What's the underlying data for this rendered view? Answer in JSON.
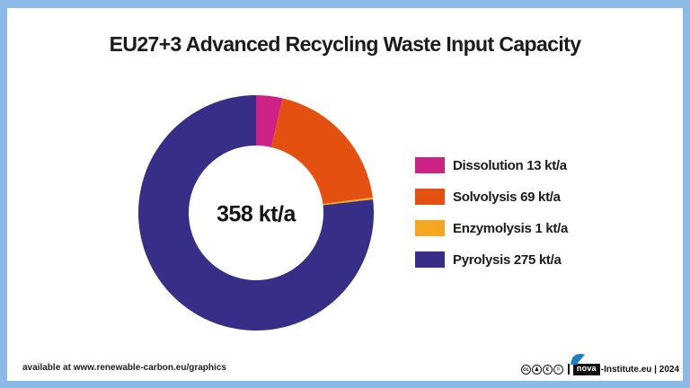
{
  "frame_color": "#8ABAE5",
  "title": "EU27+3 Advanced Recycling Waste Input Capacity",
  "chart_data": {
    "type": "pie",
    "subtype": "donut",
    "title": "EU27+3 Advanced Recycling Waste Input Capacity",
    "center_label": "358 kt/a",
    "total_value": 358,
    "unit": "kt/a",
    "start_angle_deg": 0,
    "direction": "clockwise",
    "inner_radius_ratio": 0.5725,
    "legend_position": "right",
    "segments": [
      {
        "label": "Dissolution",
        "value": 13,
        "color": "#CF2287",
        "legend_text": "Dissolution 13 kt/a"
      },
      {
        "label": "Solvolysis",
        "value": 69,
        "color": "#E4500F",
        "legend_text": "Solvolysis 69 kt/a"
      },
      {
        "label": "Enzymolysis",
        "value": 1,
        "color": "#F6A722",
        "legend_text": "Enzymolysis 1 kt/a"
      },
      {
        "label": "Pyrolysis",
        "value": 275,
        "color": "#372E87",
        "legend_text": "Pyrolysis 275 kt/a"
      }
    ]
  },
  "footer": {
    "left_note": "available at www.renewable-carbon.eu/graphics",
    "license": {
      "icons": [
        {
          "name": "cc-icon",
          "glyph": "cc"
        },
        {
          "name": "cc-by-icon",
          "glyph": "♟"
        },
        {
          "name": "cc-nc-icon",
          "glyph": "€"
        },
        {
          "name": "cc-nd-icon",
          "glyph": "="
        }
      ]
    },
    "brand": {
      "name": "nova",
      "suffix": "-Institute.eu | 2024",
      "swoosh_color": "#1D80C4"
    }
  }
}
